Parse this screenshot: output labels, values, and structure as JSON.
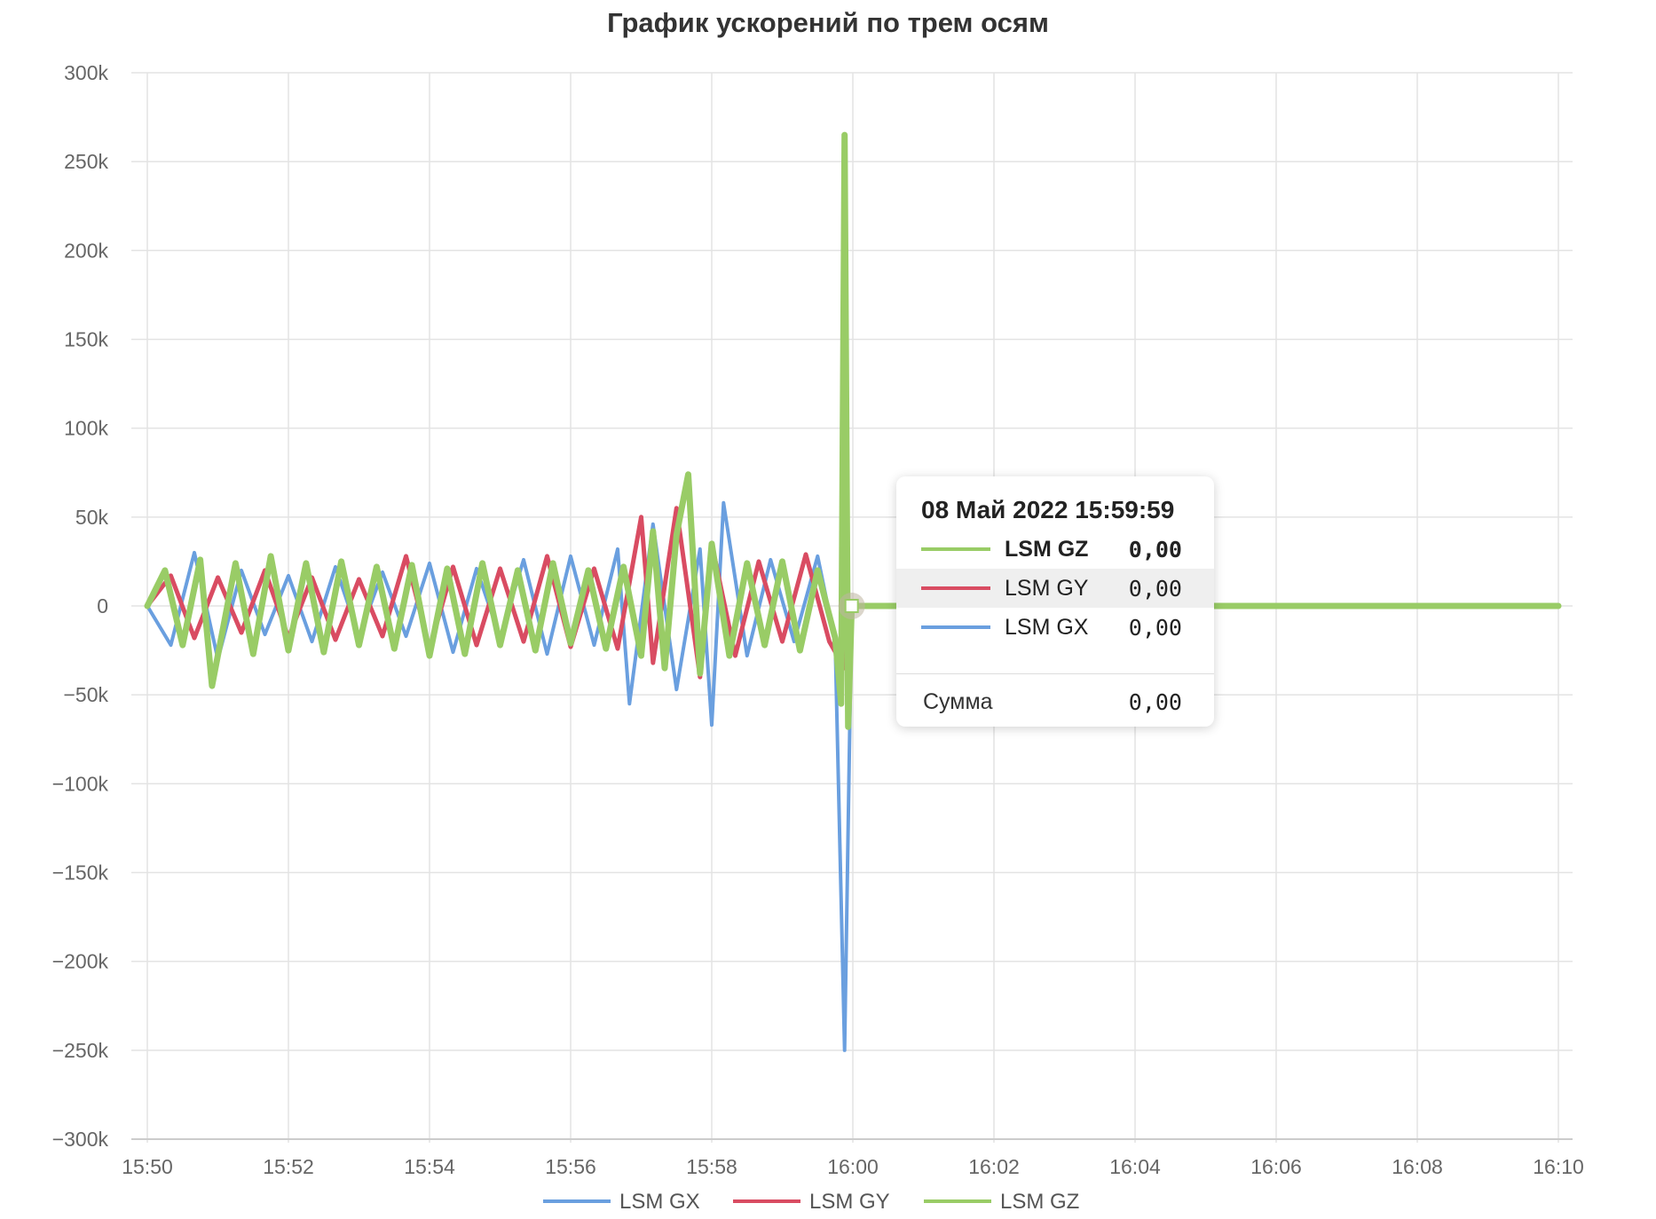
{
  "chart_data": {
    "type": "line",
    "title": "График ускорений по трем осям",
    "xlabel": "",
    "ylabel": "",
    "x_start": "15:50",
    "x_end": "16:10",
    "x_ticks": [
      "15:50",
      "15:52",
      "15:54",
      "15:56",
      "15:58",
      "16:00",
      "16:02",
      "16:04",
      "16:06",
      "16:08",
      "16:10"
    ],
    "y_ticks": [
      {
        "value": 300000,
        "label": "300k"
      },
      {
        "value": 250000,
        "label": "250k"
      },
      {
        "value": 200000,
        "label": "200k"
      },
      {
        "value": 150000,
        "label": "150k"
      },
      {
        "value": 100000,
        "label": "100k"
      },
      {
        "value": 50000,
        "label": "50k"
      },
      {
        "value": 0,
        "label": "0"
      },
      {
        "value": -50000,
        "label": "−50k"
      },
      {
        "value": -100000,
        "label": "−100k"
      },
      {
        "value": -150000,
        "label": "−150k"
      },
      {
        "value": -200000,
        "label": "−200k"
      },
      {
        "value": -250000,
        "label": "−250k"
      },
      {
        "value": -300000,
        "label": "−300k"
      }
    ],
    "ylim": [
      -300000,
      300000
    ],
    "grid": true,
    "legend_position": "bottom",
    "series": [
      {
        "name": "LSM GX",
        "color": "#6a9fdf",
        "points": [
          [
            "15:50:00",
            0
          ],
          [
            "15:50:20",
            -22000
          ],
          [
            "15:50:40",
            30000
          ],
          [
            "15:51:00",
            -30000
          ],
          [
            "15:51:20",
            20000
          ],
          [
            "15:51:40",
            -16000
          ],
          [
            "15:52:00",
            17000
          ],
          [
            "15:52:20",
            -20000
          ],
          [
            "15:52:40",
            22000
          ],
          [
            "15:53:00",
            -17000
          ],
          [
            "15:53:20",
            19000
          ],
          [
            "15:53:40",
            -17000
          ],
          [
            "15:54:00",
            24000
          ],
          [
            "15:54:20",
            -26000
          ],
          [
            "15:54:40",
            21000
          ],
          [
            "15:55:00",
            -18000
          ],
          [
            "15:55:20",
            26000
          ],
          [
            "15:55:40",
            -27000
          ],
          [
            "15:56:00",
            28000
          ],
          [
            "15:56:20",
            -22000
          ],
          [
            "15:56:40",
            32000
          ],
          [
            "15:56:50",
            -55000
          ],
          [
            "15:57:10",
            46000
          ],
          [
            "15:57:30",
            -47000
          ],
          [
            "15:57:50",
            32000
          ],
          [
            "15:58:00",
            -67000
          ],
          [
            "15:58:10",
            58000
          ],
          [
            "15:58:30",
            -28000
          ],
          [
            "15:58:50",
            26000
          ],
          [
            "15:59:10",
            -20000
          ],
          [
            "15:59:30",
            28000
          ],
          [
            "15:59:45",
            -20000
          ],
          [
            "15:59:53",
            -250000
          ],
          [
            "15:59:59",
            0
          ],
          [
            "16:10:00",
            0
          ]
        ]
      },
      {
        "name": "LSM GY",
        "color": "#d94c62",
        "points": [
          [
            "15:50:00",
            0
          ],
          [
            "15:50:20",
            17000
          ],
          [
            "15:50:40",
            -18000
          ],
          [
            "15:51:00",
            16000
          ],
          [
            "15:51:20",
            -15000
          ],
          [
            "15:51:40",
            20000
          ],
          [
            "15:52:00",
            -18000
          ],
          [
            "15:52:20",
            16000
          ],
          [
            "15:52:40",
            -19000
          ],
          [
            "15:53:00",
            15000
          ],
          [
            "15:53:20",
            -17000
          ],
          [
            "15:53:40",
            28000
          ],
          [
            "15:54:00",
            -24000
          ],
          [
            "15:54:20",
            22000
          ],
          [
            "15:54:40",
            -22000
          ],
          [
            "15:55:00",
            21000
          ],
          [
            "15:55:20",
            -20000
          ],
          [
            "15:55:40",
            28000
          ],
          [
            "15:56:00",
            -23000
          ],
          [
            "15:56:20",
            21000
          ],
          [
            "15:56:40",
            -24000
          ],
          [
            "15:57:00",
            50000
          ],
          [
            "15:57:10",
            -32000
          ],
          [
            "15:57:30",
            55000
          ],
          [
            "15:57:50",
            -40000
          ],
          [
            "15:58:00",
            35000
          ],
          [
            "15:58:20",
            -28000
          ],
          [
            "15:58:40",
            25000
          ],
          [
            "15:59:00",
            -20000
          ],
          [
            "15:59:20",
            29000
          ],
          [
            "15:59:40",
            -20000
          ],
          [
            "15:59:53",
            -35000
          ],
          [
            "15:59:59",
            0
          ],
          [
            "16:10:00",
            0
          ]
        ]
      },
      {
        "name": "LSM GZ",
        "color": "#99cc66",
        "points": [
          [
            "15:50:00",
            0
          ],
          [
            "15:50:15",
            20000
          ],
          [
            "15:50:30",
            -22000
          ],
          [
            "15:50:45",
            26000
          ],
          [
            "15:50:55",
            -45000
          ],
          [
            "15:51:15",
            24000
          ],
          [
            "15:51:30",
            -27000
          ],
          [
            "15:51:45",
            28000
          ],
          [
            "15:52:00",
            -25000
          ],
          [
            "15:52:15",
            24000
          ],
          [
            "15:52:30",
            -26000
          ],
          [
            "15:52:45",
            25000
          ],
          [
            "15:53:00",
            -22000
          ],
          [
            "15:53:15",
            22000
          ],
          [
            "15:53:30",
            -24000
          ],
          [
            "15:53:45",
            23000
          ],
          [
            "15:54:00",
            -28000
          ],
          [
            "15:54:15",
            21000
          ],
          [
            "15:54:30",
            -27000
          ],
          [
            "15:54:45",
            24000
          ],
          [
            "15:55:00",
            -22000
          ],
          [
            "15:55:15",
            20000
          ],
          [
            "15:55:30",
            -25000
          ],
          [
            "15:55:45",
            24000
          ],
          [
            "15:56:00",
            -21000
          ],
          [
            "15:56:15",
            20000
          ],
          [
            "15:56:30",
            -24000
          ],
          [
            "15:56:45",
            22000
          ],
          [
            "15:57:00",
            -28000
          ],
          [
            "15:57:10",
            42000
          ],
          [
            "15:57:20",
            -35000
          ],
          [
            "15:57:30",
            40000
          ],
          [
            "15:57:40",
            74000
          ],
          [
            "15:57:50",
            -38000
          ],
          [
            "15:58:00",
            35000
          ],
          [
            "15:58:15",
            -28000
          ],
          [
            "15:58:30",
            24000
          ],
          [
            "15:58:45",
            -22000
          ],
          [
            "15:59:00",
            25000
          ],
          [
            "15:59:15",
            -25000
          ],
          [
            "15:59:30",
            20000
          ],
          [
            "15:59:45",
            -18000
          ],
          [
            "15:59:50",
            -55000
          ],
          [
            "15:59:53",
            265000
          ],
          [
            "15:59:56",
            -68000
          ],
          [
            "15:59:59",
            0
          ],
          [
            "16:10:00",
            0
          ]
        ]
      }
    ],
    "tooltip": {
      "date": "08 Май 2022 15:59:59",
      "rows": [
        {
          "name": "LSM GZ",
          "value": "0,00",
          "color": "#99cc66"
        },
        {
          "name": "LSM GY",
          "value": "0,00",
          "color": "#d94c62"
        },
        {
          "name": "LSM GX",
          "value": "0,00",
          "color": "#6a9fdf"
        }
      ],
      "total_label": "Сумма",
      "total_value": "0,00",
      "hover_time": "15:59:59",
      "hover_value": 0
    }
  }
}
